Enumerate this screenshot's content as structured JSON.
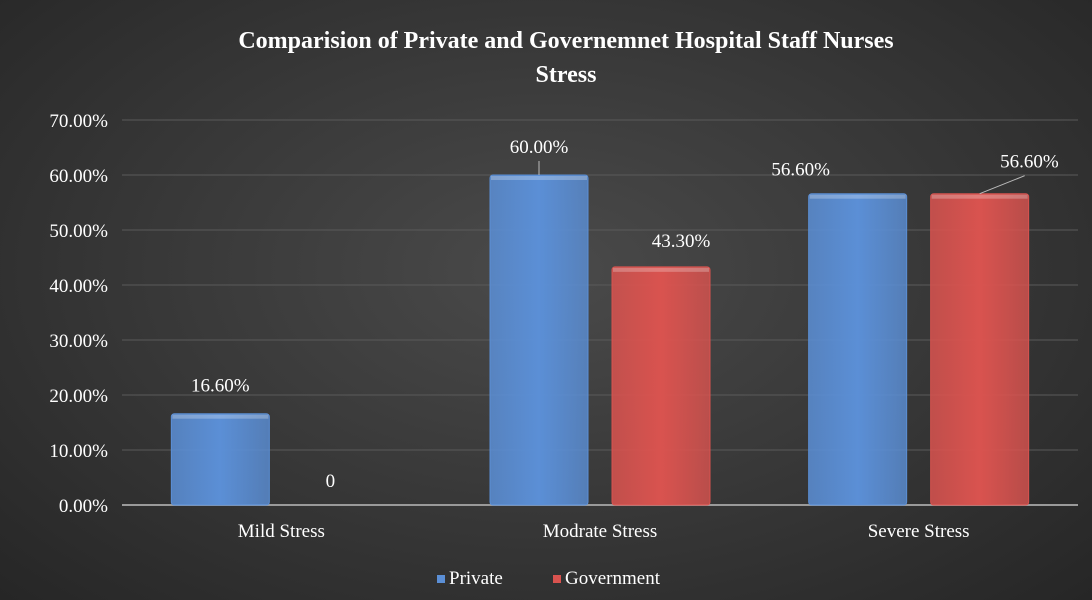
{
  "chart_data": {
    "type": "bar",
    "title": "Comparision of Private and Governemnet Hospital Staff Nurses Stress",
    "title_lines": [
      "Comparision of Private and Governemnet Hospital Staff Nurses",
      "Stress"
    ],
    "categories": [
      "Mild Stress",
      "Modrate Stress",
      "Severe Stress"
    ],
    "series": [
      {
        "name": "Private",
        "values": [
          16.6,
          60.0,
          56.6
        ],
        "labels": [
          "16.60%",
          "60.00%",
          "56.60%"
        ],
        "color": "#5b8fd6"
      },
      {
        "name": "Government",
        "values": [
          0,
          43.3,
          56.6
        ],
        "labels": [
          "0",
          "43.30%",
          "56.60%"
        ],
        "color": "#d9534f"
      }
    ],
    "ylim": [
      0,
      70
    ],
    "yticks": [
      0,
      10,
      20,
      30,
      40,
      50,
      60,
      70
    ],
    "ytick_labels": [
      "0.00%",
      "10.00%",
      "20.00%",
      "30.00%",
      "40.00%",
      "50.00%",
      "60.00%",
      "70.00%"
    ],
    "xlabel": "",
    "ylabel": "",
    "grid": true,
    "legend_position": "bottom",
    "background": "#3a3a3a"
  }
}
